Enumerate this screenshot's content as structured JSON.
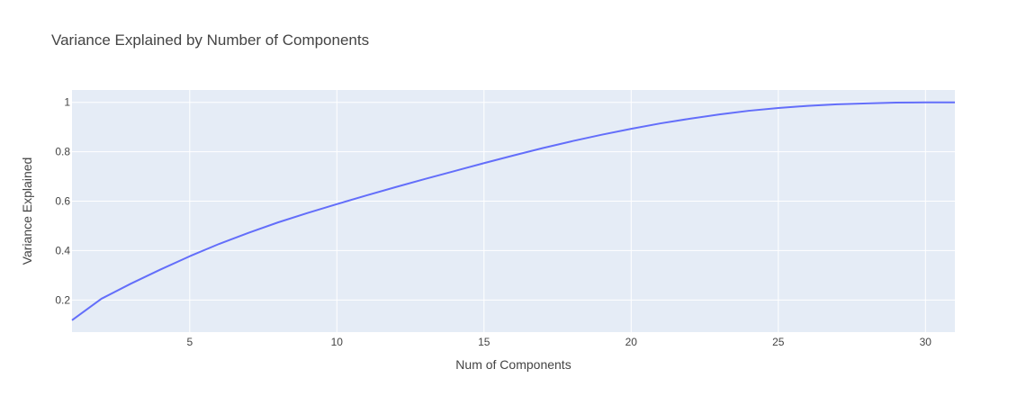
{
  "chart_data": {
    "type": "line",
    "title": "Variance Explained by Number of Components",
    "xlabel": "Num of Components",
    "ylabel": "Variance Explained",
    "xlim": [
      1,
      31
    ],
    "ylim": [
      0.07,
      1.05
    ],
    "x_ticks": [
      5,
      10,
      15,
      20,
      25,
      30
    ],
    "y_ticks": [
      0.2,
      0.4,
      0.6,
      0.8,
      1
    ],
    "y_tick_labels": [
      "0.2",
      "0.4",
      "0.6",
      "0.8",
      "1"
    ],
    "grid": true,
    "legend": "none",
    "colors": {
      "line": "#636efa",
      "plot_bg": "#e5ecf6",
      "grid": "#ffffff"
    },
    "series": [
      {
        "x": [
          1,
          2,
          3,
          4,
          5,
          6,
          7,
          8,
          9,
          10,
          11,
          12,
          13,
          14,
          15,
          16,
          17,
          18,
          19,
          20,
          21,
          22,
          23,
          24,
          25,
          26,
          27,
          28,
          29,
          30,
          31
        ],
        "values": [
          0.118,
          0.205,
          0.266,
          0.323,
          0.377,
          0.427,
          0.472,
          0.514,
          0.552,
          0.588,
          0.623,
          0.657,
          0.69,
          0.722,
          0.754,
          0.785,
          0.815,
          0.843,
          0.869,
          0.893,
          0.915,
          0.934,
          0.951,
          0.966,
          0.977,
          0.986,
          0.992,
          0.996,
          0.999,
          1.0,
          1.0
        ]
      }
    ]
  }
}
